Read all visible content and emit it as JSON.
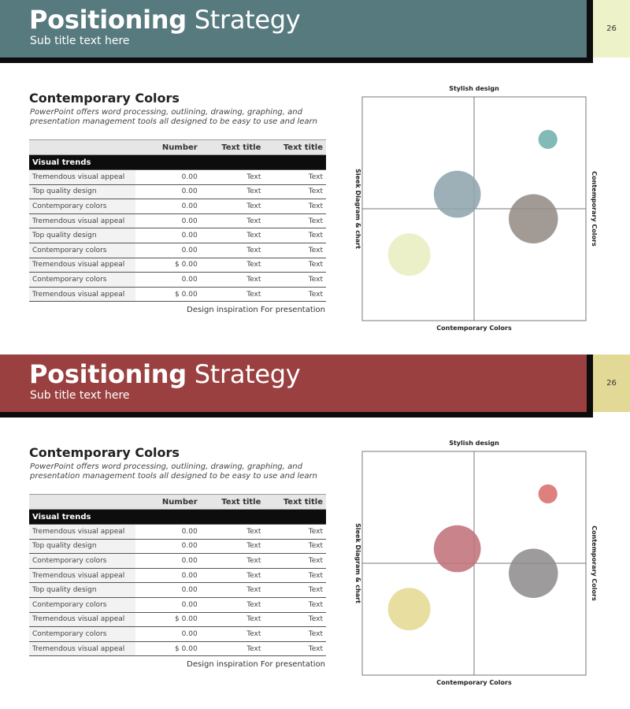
{
  "slides": [
    {
      "title_bold": "Positioning",
      "title_light": "Strategy",
      "subtitle": "Sub title text here",
      "page_number": "26",
      "colors": {
        "header": "#577a7f",
        "pagebox": "#eef2c8"
      },
      "section_title": "Contemporary Colors",
      "description": "PowerPoint offers word processing, outlining, drawing, graphing, and presentation management tools all designed to be easy to use and learn",
      "table": {
        "headers": [
          "",
          "Number",
          "Text title",
          "Text title"
        ],
        "group_label": "Visual trends",
        "rows": [
          [
            "Tremendous visual appeal",
            "0.00",
            "Text",
            "Text"
          ],
          [
            "Top quality design",
            "0.00",
            "Text",
            "Text"
          ],
          [
            "Contemporary colors",
            "0.00",
            "Text",
            "Text"
          ],
          [
            "Tremendous visual appeal",
            "0.00",
            "Text",
            "Text"
          ],
          [
            "Top quality design",
            "0.00",
            "Text",
            "Text"
          ],
          [
            "Contemporary colors",
            "0.00",
            "Text",
            "Text"
          ],
          [
            "Tremendous visual appeal",
            "$ 0.00",
            "Text",
            "Text"
          ],
          [
            "Contemporary colors",
            "0.00",
            "Text",
            "Text"
          ],
          [
            "Tremendous visual appeal",
            "$ 0.00",
            "Text",
            "Text"
          ]
        ]
      },
      "caption": "Design inspiration For presentation",
      "chart_data": {
        "type": "scatter",
        "title": "",
        "top_label": "Stylish design",
        "bottom_label": "Contemporary Colors",
        "left_label": "Sleek Diagram & chart",
        "right_label": "Contemporary Colors",
        "xlim": [
          -10,
          10
        ],
        "ylim": [
          -10,
          10
        ],
        "bubbles": [
          {
            "x": 6.6,
            "y": 6.2,
            "r": 0.85,
            "color": "#6fb0ad"
          },
          {
            "x": -1.5,
            "y": 1.3,
            "r": 2.1,
            "color": "#8fa4ad"
          },
          {
            "x": 5.3,
            "y": -0.9,
            "r": 2.2,
            "color": "#958c86"
          },
          {
            "x": -5.8,
            "y": -4.1,
            "r": 1.9,
            "color": "#e8eec1"
          }
        ]
      }
    },
    {
      "title_bold": "Positioning",
      "title_light": "Strategy",
      "subtitle": "Sub title text here",
      "page_number": "26",
      "colors": {
        "header": "#9a4040",
        "pagebox": "#e2d996"
      },
      "section_title": "Contemporary Colors",
      "description": "PowerPoint offers word processing, outlining, drawing, graphing, and presentation management tools all designed to be easy to use and learn",
      "table": {
        "headers": [
          "",
          "Number",
          "Text title",
          "Text title"
        ],
        "group_label": "Visual trends",
        "rows": [
          [
            "Tremendous visual appeal",
            "0.00",
            "Text",
            "Text"
          ],
          [
            "Top quality design",
            "0.00",
            "Text",
            "Text"
          ],
          [
            "Contemporary colors",
            "0.00",
            "Text",
            "Text"
          ],
          [
            "Tremendous visual appeal",
            "0.00",
            "Text",
            "Text"
          ],
          [
            "Top quality design",
            "0.00",
            "Text",
            "Text"
          ],
          [
            "Contemporary colors",
            "0.00",
            "Text",
            "Text"
          ],
          [
            "Tremendous visual appeal",
            "$ 0.00",
            "Text",
            "Text"
          ],
          [
            "Contemporary colors",
            "0.00",
            "Text",
            "Text"
          ],
          [
            "Tremendous visual appeal",
            "$ 0.00",
            "Text",
            "Text"
          ]
        ]
      },
      "caption": "Design inspiration For presentation",
      "chart_data": {
        "type": "scatter",
        "title": "",
        "top_label": "Stylish design",
        "bottom_label": "Contemporary Colors",
        "left_label": "Sleek Diagram & chart",
        "right_label": "Contemporary Colors",
        "xlim": [
          -10,
          10
        ],
        "ylim": [
          -10,
          10
        ],
        "bubbles": [
          {
            "x": 6.6,
            "y": 6.2,
            "r": 0.85,
            "color": "#d9706c"
          },
          {
            "x": -1.5,
            "y": 1.3,
            "r": 2.1,
            "color": "#c0737a"
          },
          {
            "x": 5.3,
            "y": -0.9,
            "r": 2.2,
            "color": "#8f8d8d"
          },
          {
            "x": -5.8,
            "y": -4.1,
            "r": 1.9,
            "color": "#e4da93"
          }
        ]
      }
    }
  ]
}
